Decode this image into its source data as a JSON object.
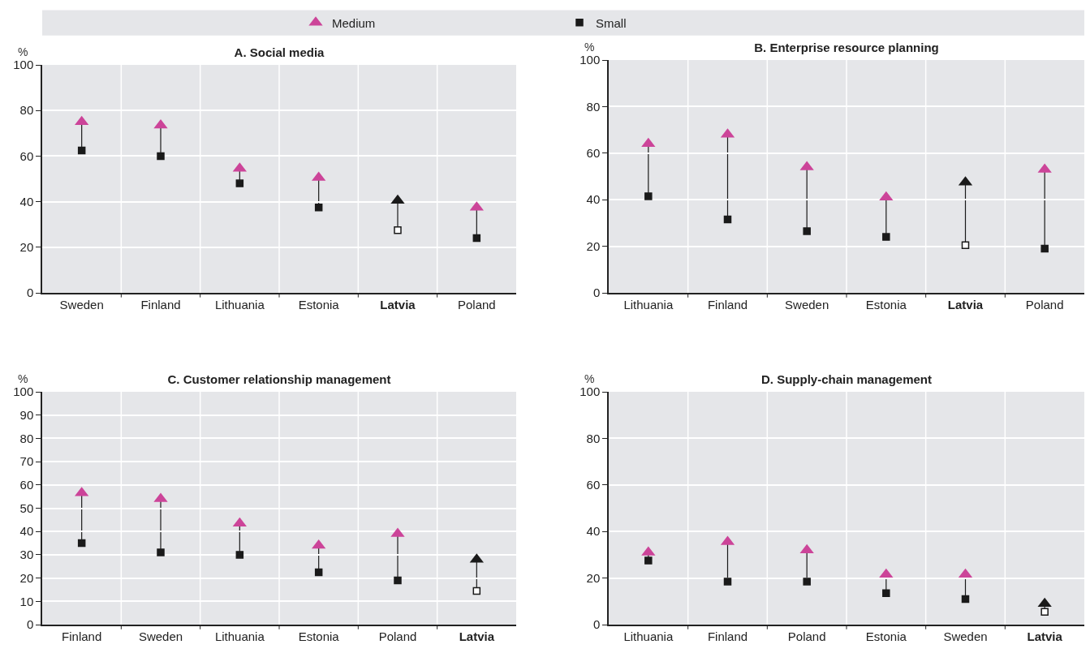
{
  "chart_data": [
    {
      "type": "scatter",
      "title": "A. Social media",
      "ylabel": "%",
      "legend": "top",
      "grid": true,
      "categories": [
        "Sweden",
        "Finland",
        "Lithuania",
        "Estonia",
        "Latvia",
        "Poland"
      ],
      "ylim": [
        0,
        100
      ],
      "yticks": [
        0,
        20,
        40,
        60,
        80,
        100
      ],
      "series": [
        {
          "name": "Medium",
          "marker": "triangle",
          "color": "#cc4499",
          "colors": [
            "#cc4499",
            "#cc4499",
            "#cc4499",
            "#cc4499",
            "#1a1a1a",
            "#cc4499"
          ],
          "values": [
            75,
            73.5,
            54.5,
            50.5,
            40.5,
            37.5
          ]
        },
        {
          "name": "Small",
          "color": "#1a1a1a",
          "colors": [
            "#1a1a1a",
            "#1a1a1a",
            "#1a1a1a",
            "#1a1a1a",
            "#ffffff",
            "#1a1a1a"
          ],
          "values": [
            62.5,
            60,
            48,
            37.5,
            27.5,
            24
          ]
        }
      ]
    },
    {
      "type": "scatter",
      "title": "B. Enterprise resource planning",
      "ylabel": "%",
      "grid": true,
      "categories": [
        "Lithuania",
        "Finland",
        "Sweden",
        "Estonia",
        "Latvia",
        "Poland"
      ],
      "ylim": [
        0,
        100
      ],
      "yticks": [
        0,
        20,
        40,
        60,
        80,
        100
      ],
      "series": [
        {
          "marker": "triangle",
          "color": "#cc4499",
          "colors": [
            "#cc4499",
            "#cc4499",
            "#cc4499",
            "#cc4499",
            "#1a1a1a",
            "#cc4499"
          ],
          "values": [
            64,
            68,
            54,
            41,
            47.5,
            53
          ]
        },
        {
          "color": "#1a1a1a",
          "colors": [
            "#1a1a1a",
            "#1a1a1a",
            "#1a1a1a",
            "#1a1a1a",
            "#ffffff",
            "#1a1a1a"
          ],
          "values": [
            41.5,
            31.5,
            26.5,
            24,
            20.5,
            19
          ]
        }
      ]
    },
    {
      "type": "scatter",
      "title": "C. Customer relationship management",
      "ylabel": "%",
      "grid": true,
      "categories": [
        "Finland",
        "Sweden",
        "Lithuania",
        "Estonia",
        "Poland",
        "Latvia"
      ],
      "ylim": [
        0,
        100
      ],
      "yticks": [
        0,
        10,
        20,
        30,
        40,
        50,
        60,
        70,
        80,
        90,
        100
      ],
      "series": [
        {
          "marker": "triangle",
          "color": "#cc4499",
          "colors": [
            "#cc4499",
            "#cc4499",
            "#cc4499",
            "#cc4499",
            "#cc4499",
            "#1a1a1a"
          ],
          "values": [
            56.5,
            54,
            43.5,
            34,
            39,
            28
          ]
        },
        {
          "color": "#1a1a1a",
          "colors": [
            "#1a1a1a",
            "#1a1a1a",
            "#1a1a1a",
            "#1a1a1a",
            "#1a1a1a",
            "#ffffff"
          ],
          "values": [
            35,
            31,
            30,
            22.5,
            19,
            14.5
          ]
        }
      ]
    },
    {
      "type": "scatter",
      "title": "D. Supply-chain management",
      "ylabel": "%",
      "grid": true,
      "categories": [
        "Lithuania",
        "Finland",
        "Poland",
        "Estonia",
        "Sweden",
        "Latvia"
      ],
      "ylim": [
        0,
        100
      ],
      "yticks": [
        0,
        20,
        40,
        60,
        80,
        100
      ],
      "series": [
        {
          "marker": "triangle",
          "color": "#cc4499",
          "colors": [
            "#cc4499",
            "#cc4499",
            "#cc4499",
            "#cc4499",
            "#cc4499",
            "#1a1a1a"
          ],
          "values": [
            31,
            35.5,
            32,
            21.5,
            21.5,
            9
          ]
        },
        {
          "color": "#1a1a1a",
          "colors": [
            "#1a1a1a",
            "#1a1a1a",
            "#1a1a1a",
            "#1a1a1a",
            "#1a1a1a",
            "#ffffff"
          ],
          "values": [
            27.5,
            18.5,
            18.5,
            13.5,
            11,
            5.5
          ]
        }
      ]
    }
  ]
}
